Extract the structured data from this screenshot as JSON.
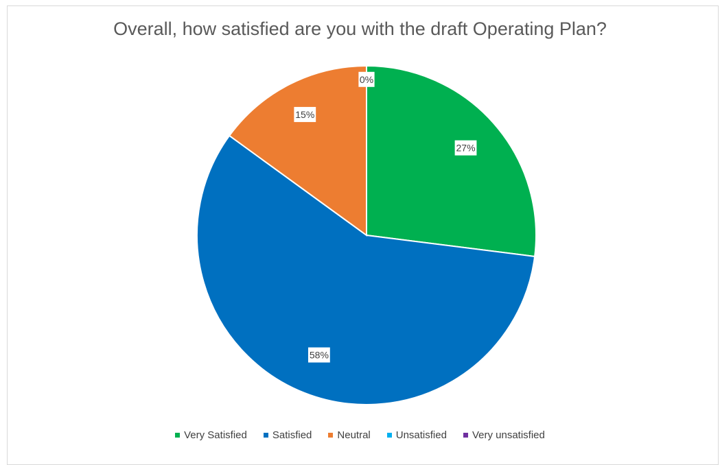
{
  "chart_data": {
    "type": "pie",
    "title": "Overall, how satisfied are you with the draft Operating Plan?",
    "categories": [
      "Very Satisfied",
      "Satisfied",
      "Neutral",
      "Unsatisfied",
      "Very unsatisfied"
    ],
    "values": [
      27,
      58,
      15,
      0,
      0
    ],
    "data_labels": [
      "27%",
      "58%",
      "15%",
      "0%",
      ""
    ],
    "colors": [
      "#00b050",
      "#0070c0",
      "#ed7d31",
      "#00b0f0",
      "#7030a0"
    ],
    "legend_position": "bottom",
    "legend": [
      {
        "label": "Very Satisfied",
        "color": "#00b050"
      },
      {
        "label": "Satisfied",
        "color": "#0070c0"
      },
      {
        "label": "Neutral",
        "color": "#ed7d31"
      },
      {
        "label": "Unsatisfied",
        "color": "#00b0f0"
      },
      {
        "label": "Very unsatisfied",
        "color": "#7030a0"
      }
    ]
  }
}
